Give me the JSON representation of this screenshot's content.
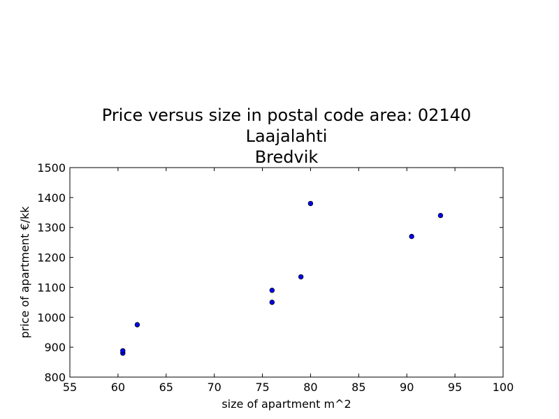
{
  "chart_data": {
    "type": "scatter",
    "title_lines": [
      "Price versus size in postal code area: 02140",
      "Laajalahti",
      "Bredvik"
    ],
    "xlabel": "size of apartment m^2",
    "ylabel": "price of apartment €/kk",
    "xlim": [
      55,
      100
    ],
    "ylim": [
      800,
      1500
    ],
    "xticks": [
      55,
      60,
      65,
      70,
      75,
      80,
      85,
      90,
      95,
      100
    ],
    "yticks": [
      800,
      900,
      1000,
      1100,
      1200,
      1300,
      1400,
      1500
    ],
    "grid": false,
    "marker_color": "#0000ff",
    "marker_edge_color": "#000000",
    "points": [
      {
        "x": 60.5,
        "y": 880
      },
      {
        "x": 60.5,
        "y": 888
      },
      {
        "x": 62,
        "y": 975
      },
      {
        "x": 76,
        "y": 1050
      },
      {
        "x": 76,
        "y": 1090
      },
      {
        "x": 79,
        "y": 1135
      },
      {
        "x": 80,
        "y": 1380
      },
      {
        "x": 90.5,
        "y": 1270
      },
      {
        "x": 93.5,
        "y": 1340
      }
    ]
  }
}
